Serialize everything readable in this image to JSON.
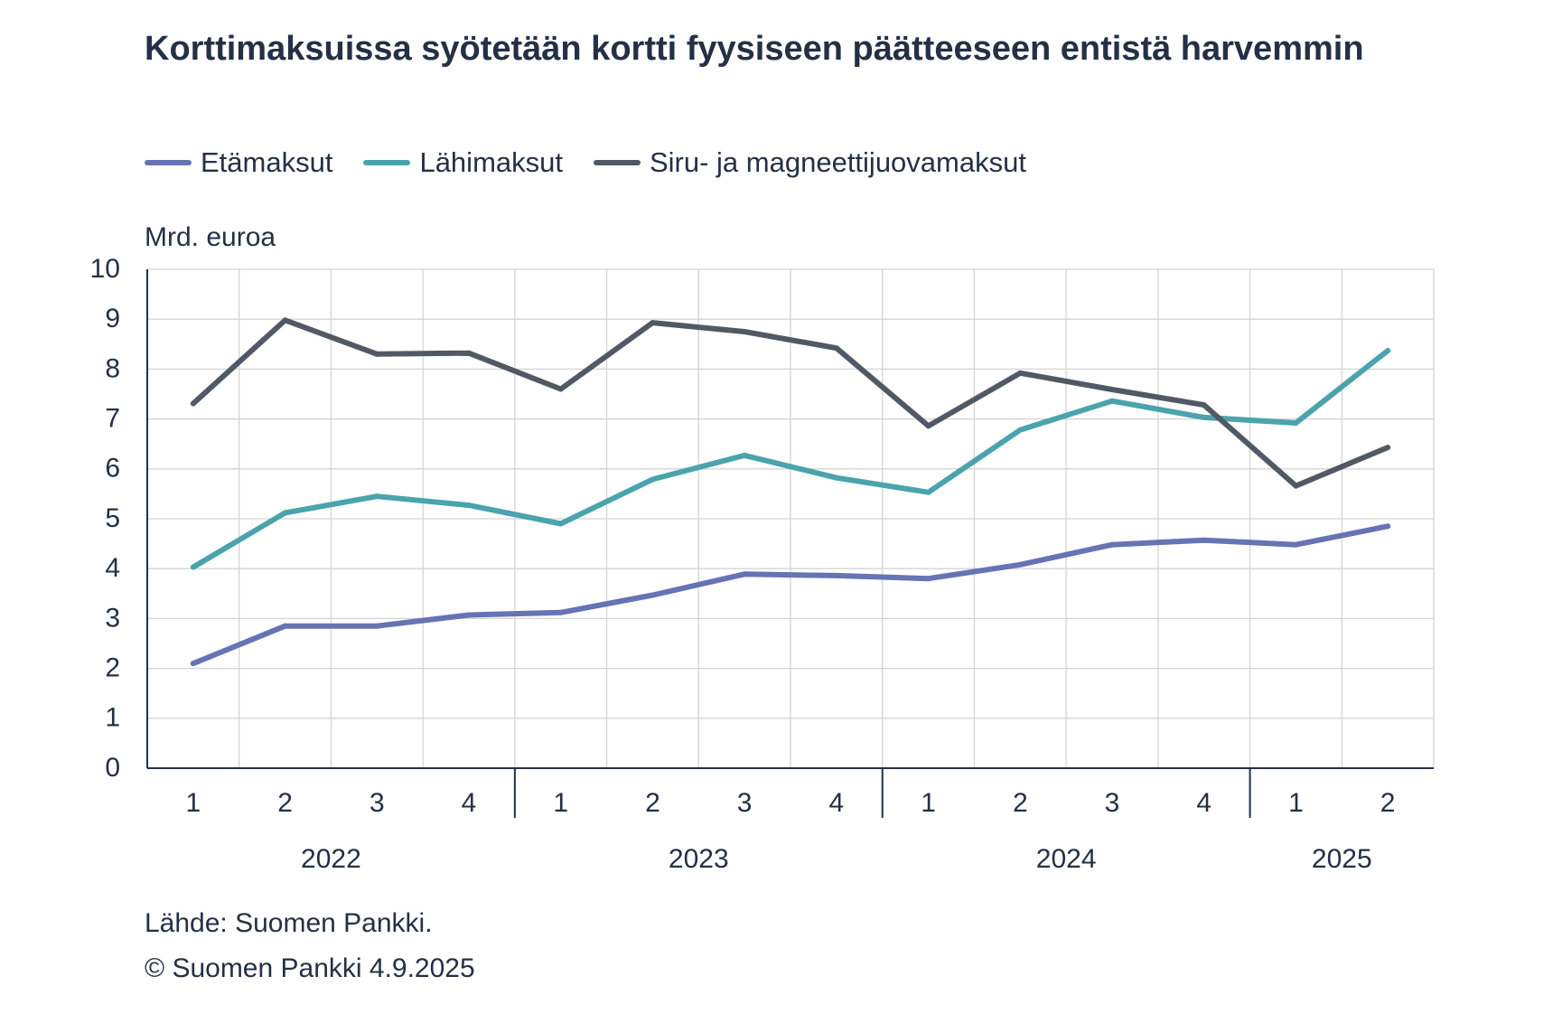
{
  "chart_data": {
    "type": "line",
    "title": "Korttimaksuissa syötetään kortti fyysiseen päätteeseen entistä harvemmin",
    "ylabel": "Mrd. euroa",
    "ylim": [
      0,
      10
    ],
    "yticks": [
      "0",
      "1",
      "2",
      "3",
      "4",
      "5",
      "6",
      "7",
      "8",
      "9",
      "10"
    ],
    "grid": true,
    "legend_position": "top",
    "quarters": [
      "1",
      "2",
      "3",
      "4",
      "1",
      "2",
      "3",
      "4",
      "1",
      "2",
      "3",
      "4",
      "1",
      "2"
    ],
    "years": [
      {
        "label": "2022",
        "quarters": 4
      },
      {
        "label": "2023",
        "quarters": 4
      },
      {
        "label": "2024",
        "quarters": 4
      },
      {
        "label": "2025",
        "quarters": 2
      }
    ],
    "series": [
      {
        "name": "Etämaksut",
        "color": "#6673b4",
        "values": [
          2.1,
          2.85,
          2.85,
          3.07,
          3.12,
          3.47,
          3.89,
          3.86,
          3.8,
          4.08,
          4.48,
          4.57,
          4.48,
          4.85
        ]
      },
      {
        "name": "Lähimaksut",
        "color": "#4aa3ad",
        "values": [
          4.03,
          5.12,
          5.45,
          5.27,
          4.9,
          5.79,
          6.27,
          5.82,
          5.53,
          6.78,
          7.36,
          7.03,
          6.92,
          8.37
        ]
      },
      {
        "name": "Siru- ja magneettijuovamaksut",
        "color": "#505964",
        "values": [
          7.31,
          8.98,
          8.3,
          8.32,
          7.6,
          8.93,
          8.75,
          8.42,
          6.86,
          7.92,
          7.59,
          7.28,
          5.66,
          6.43
        ]
      }
    ]
  },
  "legend": {
    "items": [
      {
        "label": "Etämaksut",
        "color": "#6673b4"
      },
      {
        "label": "Lähimaksut",
        "color": "#4aa3ad"
      },
      {
        "label": "Siru- ja magneettijuovamaksut",
        "color": "#505964"
      }
    ]
  },
  "footer": {
    "source": "Lähde: Suomen Pankki.",
    "copyright": "© Suomen Pankki 4.9.2025"
  }
}
